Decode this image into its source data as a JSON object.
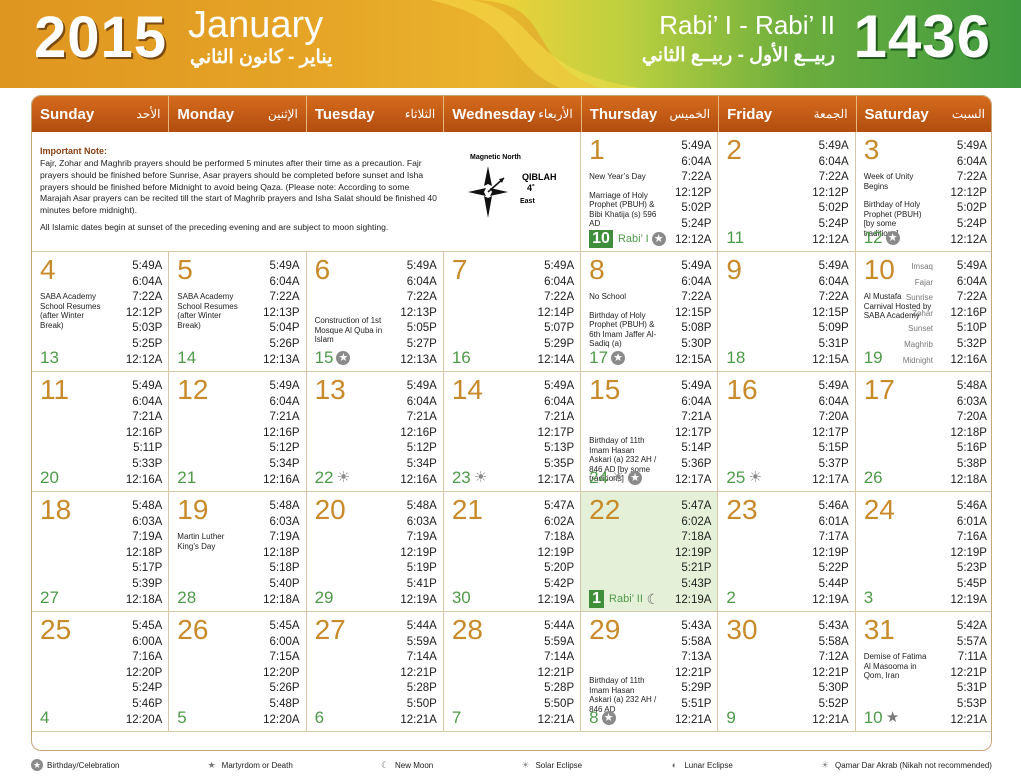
{
  "header": {
    "year_gregorian": "2015",
    "month_gregorian": "January",
    "month_gregorian_ar": "يناير - كانون الثاني",
    "month_hijri": "Rabi’ I - Rabi’ II",
    "month_hijri_ar": "ربيــع الأول - ربيــع الثاني",
    "year_hijri": "1436",
    "colors": {
      "left": "#d98f1e",
      "right": "#3f9a3f",
      "weekday_bar": "#c75a14"
    }
  },
  "weekdays": [
    {
      "en": "Sunday",
      "ar": "الأحد"
    },
    {
      "en": "Monday",
      "ar": "الإثنين"
    },
    {
      "en": "Tuesday",
      "ar": "الثلاثاء"
    },
    {
      "en": "Wednesday",
      "ar": "الأربعاء"
    },
    {
      "en": "Thursday",
      "ar": "الخميس"
    },
    {
      "en": "Friday",
      "ar": "الجمعة"
    },
    {
      "en": "Saturday",
      "ar": "السبت"
    }
  ],
  "note": {
    "title": "Important Note:",
    "text1": "Fajr, Zohar and Maghrib prayers should be performed 5 minutes after their time as a precaution. Fajr prayers should be finished before Sunrise, Asar prayers should be completed before sunset and Isha prayers should be finished before Midnight to avoid being Qaza. (Please note: According to some Marajah Asar prayers can be recited till the start of Maghrib prayers and Isha Salat should be finished 40 minutes before midnight).",
    "text2": "All Islamic dates begin at sunset of the preceding evening and are subject to moon sighting.",
    "magnetic_north": "Magnetic North",
    "qiblah": "QIBLAH",
    "qiblah_deg": "4˚",
    "east": "East"
  },
  "time_labels": [
    "Imsaq",
    "Fajar",
    "Sunrise",
    "Zohar",
    "Sunset",
    "Maghrib",
    "Midnight"
  ],
  "days": [
    {
      "g": "1",
      "h": "10",
      "hm": "Rabi’ I",
      "box": true,
      "sym": [
        "birthday"
      ],
      "events": [
        "New Year’s Day",
        "Marriage of Holy Prophet (PBUH) & Bibi Khatija (s) 596 AD"
      ],
      "t": [
        "5:49A",
        "6:04A",
        "7:22A",
        "12:12P",
        "5:02P",
        "5:24P",
        "12:12A"
      ]
    },
    {
      "g": "2",
      "h": "11",
      "sym": [],
      "events": [],
      "t": [
        "5:49A",
        "6:04A",
        "7:22A",
        "12:12P",
        "5:02P",
        "5:24P",
        "12:12A"
      ]
    },
    {
      "g": "3",
      "h": "12",
      "sym": [
        "birthday"
      ],
      "events": [
        "Week of Unity Begins",
        "Birthday of Holy Prophet (PBUH) [by some traditions]"
      ],
      "t": [
        "5:49A",
        "6:04A",
        "7:22A",
        "12:12P",
        "5:02P",
        "5:24P",
        "12:12A"
      ]
    },
    {
      "g": "4",
      "h": "13",
      "sym": [],
      "events": [
        "SABA Academy School Resumes (after Winter Break)"
      ],
      "t": [
        "5:49A",
        "6:04A",
        "7:22A",
        "12:12P",
        "5:03P",
        "5:25P",
        "12:12A"
      ]
    },
    {
      "g": "5",
      "h": "14",
      "sym": [],
      "events": [
        "SABA Academy School Resumes (after Winter Break)"
      ],
      "t": [
        "5:49A",
        "6:04A",
        "7:22A",
        "12:13P",
        "5:04P",
        "5:26P",
        "12:13A"
      ]
    },
    {
      "g": "6",
      "h": "15",
      "sym": [
        "birthday"
      ],
      "events": [
        "Construction of 1st Mosque Al Quba in Islam"
      ],
      "t": [
        "5:49A",
        "6:04A",
        "7:22A",
        "12:13P",
        "5:05P",
        "5:27P",
        "12:13A"
      ]
    },
    {
      "g": "7",
      "h": "16",
      "sym": [],
      "events": [],
      "t": [
        "5:49A",
        "6:04A",
        "7:22A",
        "12:14P",
        "5:07P",
        "5:29P",
        "12:14A"
      ]
    },
    {
      "g": "8",
      "h": "17",
      "sym": [
        "birthday"
      ],
      "events": [
        "No School",
        "Birthday of Holy Prophet (PBUH) & 6th Imam Jaffer Al-Sadiq (a)"
      ],
      "t": [
        "5:49A",
        "6:04A",
        "7:22A",
        "12:15P",
        "5:08P",
        "5:30P",
        "12:15A"
      ]
    },
    {
      "g": "9",
      "h": "18",
      "sym": [],
      "events": [],
      "t": [
        "5:49A",
        "6:04A",
        "7:22A",
        "12:15P",
        "5:09P",
        "5:31P",
        "12:15A"
      ]
    },
    {
      "g": "10",
      "h": "19",
      "sym": [],
      "events": [
        "Al Mustafa Carnival Hosted by SABA Academy"
      ],
      "labels": true,
      "t": [
        "5:49A",
        "6:04A",
        "7:22A",
        "12:16P",
        "5:10P",
        "5:32P",
        "12:16A"
      ]
    },
    {
      "g": "11",
      "h": "20",
      "sym": [],
      "events": [],
      "t": [
        "5:49A",
        "6:04A",
        "7:21A",
        "12:16P",
        "5:11P",
        "5:33P",
        "12:16A"
      ]
    },
    {
      "g": "12",
      "h": "21",
      "sym": [],
      "events": [],
      "t": [
        "5:49A",
        "6:04A",
        "7:21A",
        "12:16P",
        "5:12P",
        "5:34P",
        "12:16A"
      ]
    },
    {
      "g": "13",
      "h": "22",
      "sym": [
        "solar"
      ],
      "events": [],
      "t": [
        "5:49A",
        "6:04A",
        "7:21A",
        "12:16P",
        "5:12P",
        "5:34P",
        "12:16A"
      ]
    },
    {
      "g": "14",
      "h": "23",
      "sym": [
        "solar"
      ],
      "events": [],
      "t": [
        "5:49A",
        "6:04A",
        "7:21A",
        "12:17P",
        "5:13P",
        "5:35P",
        "12:17A"
      ]
    },
    {
      "g": "15",
      "h": "24",
      "sym": [
        "solar",
        "birthday"
      ],
      "events": [
        "Birthday of 11th Imam Hasan Askari (a) 232 AH / 846 AD [by some traditions]"
      ],
      "t": [
        "5:49A",
        "6:04A",
        "7:21A",
        "12:17P",
        "5:14P",
        "5:36P",
        "12:17A"
      ]
    },
    {
      "g": "16",
      "h": "25",
      "sym": [
        "solar"
      ],
      "events": [],
      "t": [
        "5:49A",
        "6:04A",
        "7:20A",
        "12:17P",
        "5:15P",
        "5:37P",
        "12:17A"
      ]
    },
    {
      "g": "17",
      "h": "26",
      "sym": [],
      "events": [],
      "t": [
        "5:48A",
        "6:03A",
        "7:20A",
        "12:18P",
        "5:16P",
        "5:38P",
        "12:18A"
      ]
    },
    {
      "g": "18",
      "h": "27",
      "sym": [],
      "events": [],
      "t": [
        "5:48A",
        "6:03A",
        "7:19A",
        "12:18P",
        "5:17P",
        "5:39P",
        "12:18A"
      ]
    },
    {
      "g": "19",
      "h": "28",
      "sym": [],
      "events": [
        "Martin Luther King’s Day"
      ],
      "t": [
        "5:48A",
        "6:03A",
        "7:19A",
        "12:18P",
        "5:18P",
        "5:40P",
        "12:18A"
      ]
    },
    {
      "g": "20",
      "h": "29",
      "sym": [],
      "events": [],
      "t": [
        "5:48A",
        "6:03A",
        "7:19A",
        "12:19P",
        "5:19P",
        "5:41P",
        "12:19A"
      ]
    },
    {
      "g": "21",
      "h": "30",
      "sym": [],
      "events": [],
      "t": [
        "5:47A",
        "6:02A",
        "7:18A",
        "12:19P",
        "5:20P",
        "5:42P",
        "12:19A"
      ]
    },
    {
      "g": "22",
      "h": "1",
      "hm": "Rabi’ II",
      "box": true,
      "today": true,
      "sym": [
        "newmoon"
      ],
      "events": [],
      "t": [
        "5:47A",
        "6:02A",
        "7:18A",
        "12:19P",
        "5:21P",
        "5:43P",
        "12:19A"
      ]
    },
    {
      "g": "23",
      "h": "2",
      "sym": [],
      "events": [],
      "t": [
        "5:46A",
        "6:01A",
        "7:17A",
        "12:19P",
        "5:22P",
        "5:44P",
        "12:19A"
      ]
    },
    {
      "g": "24",
      "h": "3",
      "sym": [],
      "events": [],
      "t": [
        "5:46A",
        "6:01A",
        "7:16A",
        "12:19P",
        "5:23P",
        "5:45P",
        "12:19A"
      ]
    },
    {
      "g": "25",
      "h": "4",
      "sym": [],
      "events": [],
      "t": [
        "5:45A",
        "6:00A",
        "7:16A",
        "12:20P",
        "5:24P",
        "5:46P",
        "12:20A"
      ]
    },
    {
      "g": "26",
      "h": "5",
      "sym": [],
      "events": [],
      "t": [
        "5:45A",
        "6:00A",
        "7:15A",
        "12:20P",
        "5:26P",
        "5:48P",
        "12:20A"
      ]
    },
    {
      "g": "27",
      "h": "6",
      "sym": [],
      "events": [],
      "t": [
        "5:44A",
        "5:59A",
        "7:14A",
        "12:21P",
        "5:28P",
        "5:50P",
        "12:21A"
      ]
    },
    {
      "g": "28",
      "h": "7",
      "sym": [],
      "events": [],
      "t": [
        "5:44A",
        "5:59A",
        "7:14A",
        "12:21P",
        "5:28P",
        "5:50P",
        "12:21A"
      ]
    },
    {
      "g": "29",
      "h": "8",
      "sym": [
        "birthday"
      ],
      "events": [
        "Birthday of 11th Imam Hasan Askari (a) 232 AH / 846 AD"
      ],
      "t": [
        "5:43A",
        "5:58A",
        "7:13A",
        "12:21P",
        "5:29P",
        "5:51P",
        "12:21A"
      ]
    },
    {
      "g": "30",
      "h": "9",
      "sym": [],
      "events": [],
      "t": [
        "5:43A",
        "5:58A",
        "7:12A",
        "12:21P",
        "5:30P",
        "5:52P",
        "12:21A"
      ]
    },
    {
      "g": "31",
      "h": "10",
      "sym": [
        "martyrdom"
      ],
      "events": [
        "Demise of Fatima Al Masooma in Qom, Iran"
      ],
      "t": [
        "5:42A",
        "5:57A",
        "7:11A",
        "12:21P",
        "5:31P",
        "5:53P",
        "12:21A"
      ]
    }
  ],
  "legend": [
    {
      "icon": "birthday",
      "label": "Birthday/Celebration"
    },
    {
      "icon": "martyrdom",
      "label": "Martyrdom or Death"
    },
    {
      "icon": "newmoon",
      "label": "New Moon"
    },
    {
      "icon": "solar",
      "label": "Solar Eclipse"
    },
    {
      "icon": "lunar",
      "label": "Lunar Eclipse"
    },
    {
      "icon": "qamar",
      "label": "Qamar Dar Akrab (Nikah not recommended)"
    }
  ]
}
